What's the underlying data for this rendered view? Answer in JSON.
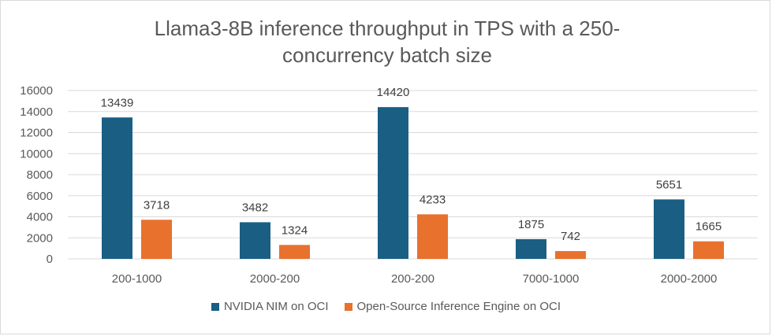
{
  "chart_data": {
    "type": "bar",
    "title": "Llama3-8B inference throughput in TPS with a 250-concurrency batch size",
    "title_lines": [
      "Llama3-8B inference throughput in TPS with a 250-",
      "concurrency batch size"
    ],
    "categories": [
      "200-1000",
      "2000-200",
      "200-200",
      "7000-1000",
      "2000-2000"
    ],
    "series": [
      {
        "name": "NVIDIA NIM on OCI",
        "values": [
          13439,
          3482,
          14420,
          1875,
          5651
        ],
        "color": "#1a5e84"
      },
      {
        "name": "Open-Source Inference Engine on OCI",
        "values": [
          3718,
          1324,
          4233,
          742,
          1665
        ],
        "color": "#e8712e"
      }
    ],
    "ylim": [
      0,
      16000
    ],
    "yticks": [
      0,
      2000,
      4000,
      6000,
      8000,
      10000,
      12000,
      14000,
      16000
    ],
    "grid": true,
    "legend_position": "bottom",
    "data_labels": true
  }
}
